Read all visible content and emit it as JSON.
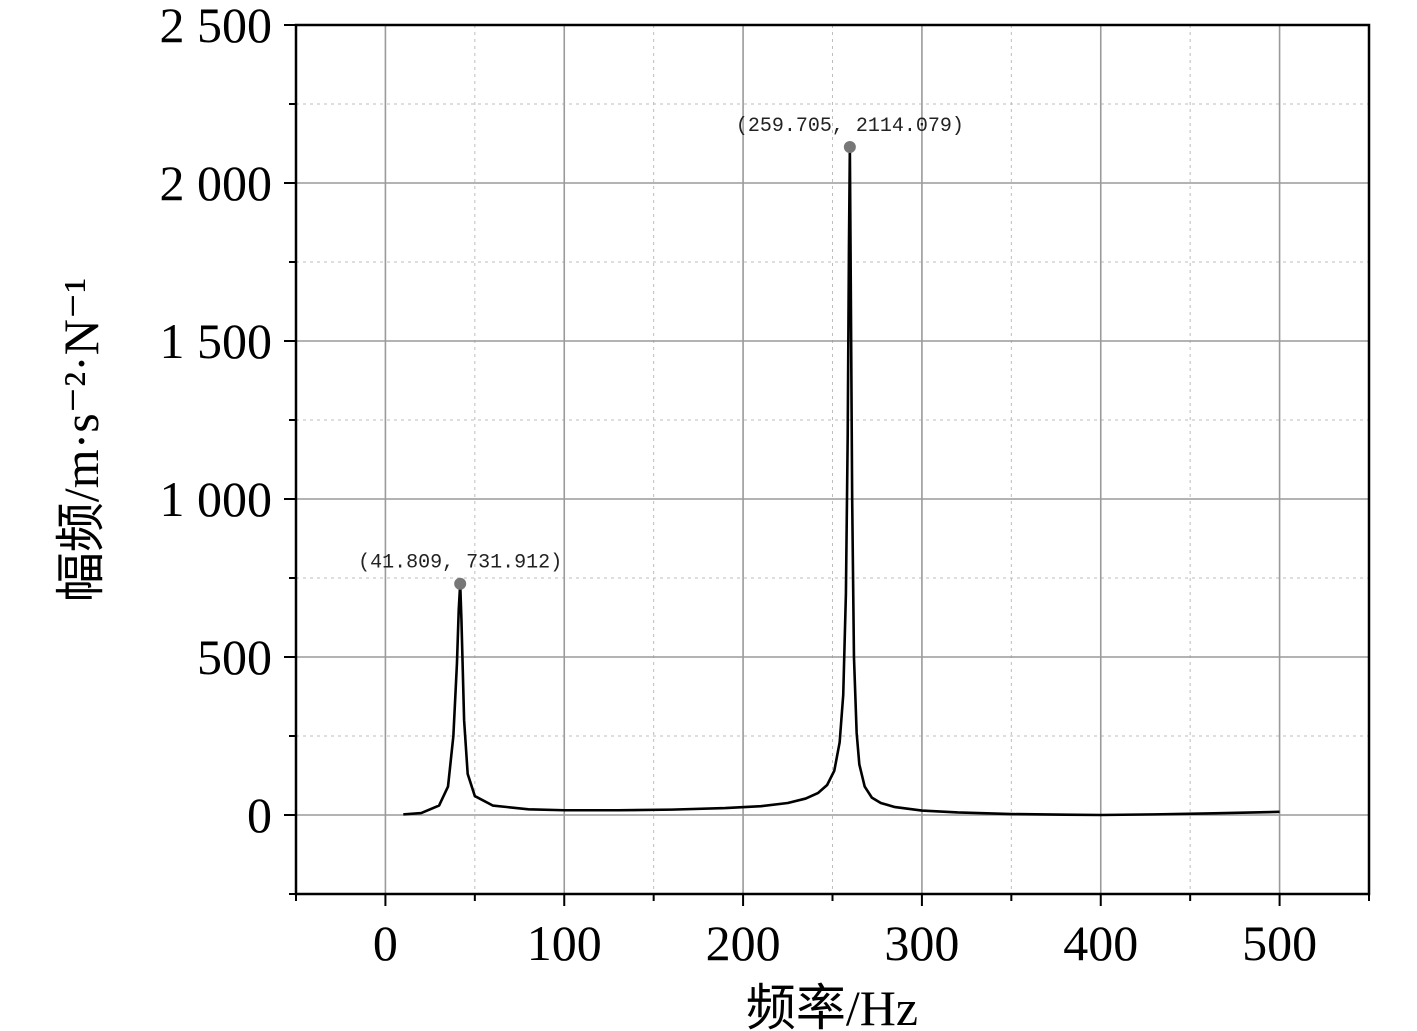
{
  "chart_data": {
    "type": "line",
    "xlabel": "频率/Hz",
    "ylabel": "幅频/m·s⁻²·N⁻¹",
    "xlim": [
      -50,
      550
    ],
    "ylim": [
      -250,
      2500
    ],
    "x_ticks": [
      0,
      100,
      200,
      300,
      400,
      500
    ],
    "x_tick_labels": [
      "0",
      "100",
      "200",
      "300",
      "400",
      "500"
    ],
    "y_ticks": [
      0,
      500,
      1000,
      1500,
      2000,
      2500
    ],
    "y_tick_labels": [
      "0",
      "500",
      "1 000",
      "1 500",
      "2 000",
      "2 500"
    ],
    "grid": true,
    "series": [
      {
        "color": "#000000",
        "x": [
          10,
          20,
          30,
          35,
          38,
          40,
          41,
          41.809,
          42.5,
          44,
          46,
          50,
          60,
          80,
          100,
          130,
          160,
          190,
          210,
          225,
          235,
          242,
          247,
          251,
          254,
          256,
          257.5,
          258.5,
          259.2,
          259.705,
          260.2,
          261,
          262,
          263.5,
          265,
          268,
          272,
          277,
          285,
          300,
          320,
          350,
          380,
          400,
          430,
          460,
          500
        ],
        "y": [
          2,
          6,
          30,
          90,
          250,
          480,
          650,
          731.912,
          620,
          300,
          130,
          60,
          30,
          18,
          15,
          15,
          17,
          22,
          28,
          38,
          52,
          70,
          95,
          140,
          230,
          380,
          700,
          1200,
          1800,
          2114.079,
          1700,
          1000,
          500,
          260,
          160,
          90,
          55,
          38,
          25,
          14,
          8,
          3,
          1,
          0,
          2,
          5,
          10
        ]
      }
    ],
    "annotations": [
      {
        "x": 41.809,
        "y": 731.912,
        "label": "(41.809, 731.912)"
      },
      {
        "x": 259.705,
        "y": 2114.079,
        "label": "(259.705, 2114.079)"
      }
    ],
    "marker_color": "#777777"
  }
}
